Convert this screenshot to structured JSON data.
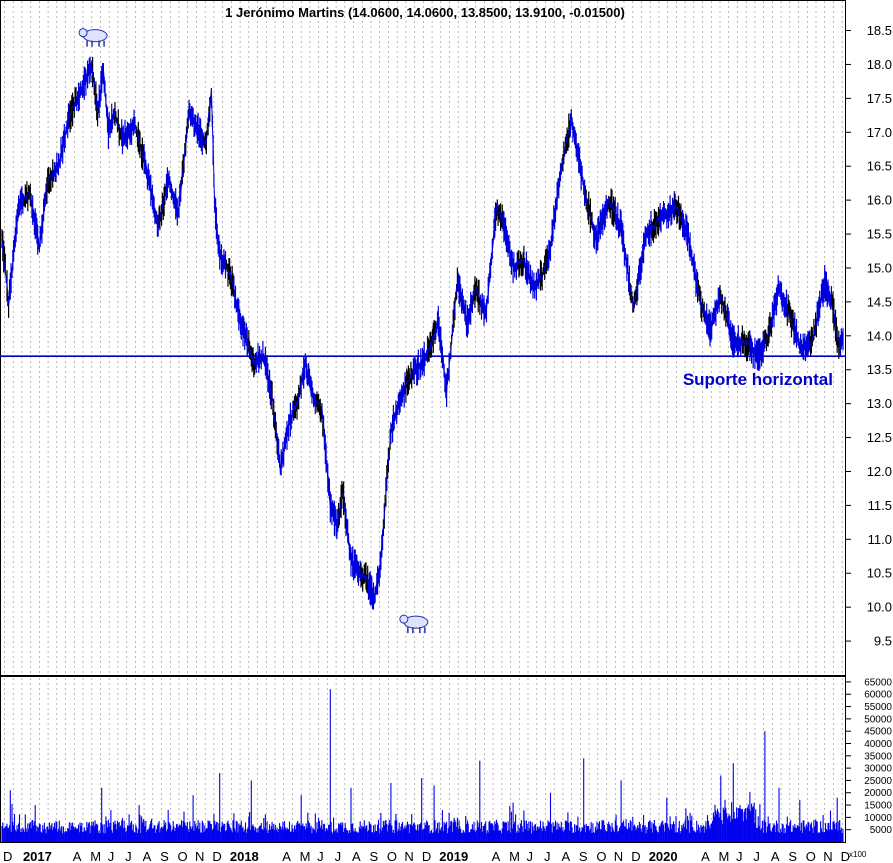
{
  "chart_data": [
    {
      "type": "line",
      "panel": "price",
      "title": "1 Jerónimo Martins (14.0600, 14.0600, 13.8500, 13.9100, -0.01500)",
      "xlabel": "",
      "ylabel": "",
      "ylim": [
        9.0,
        18.95
      ],
      "yticks": [
        "18.5",
        "18.0",
        "17.5",
        "17.0",
        "16.5",
        "16.0",
        "15.5",
        "15.0",
        "14.5",
        "14.0",
        "13.5",
        "13.0",
        "12.5",
        "12.0",
        "11.5",
        "11.0",
        "10.5",
        "10.0",
        "9.5"
      ],
      "grid": true,
      "colors": {
        "line": "#0000dd",
        "line_alt": "#000000",
        "support": "#0000cc",
        "annotation": "#0000cc",
        "grid": "#9a9a9a"
      },
      "x_labels": [
        "D",
        "2017",
        "A",
        "M",
        "J",
        "J",
        "A",
        "S",
        "O",
        "N",
        "D",
        "2018",
        "A",
        "M",
        "J",
        "J",
        "A",
        "S",
        "O",
        "N",
        "D",
        "2019",
        "A",
        "M",
        "J",
        "J",
        "A",
        "S",
        "O",
        "N",
        "D",
        "2020",
        "A",
        "M",
        "J",
        "J",
        "A",
        "S",
        "O",
        "N",
        "D"
      ],
      "x_label_day_index": [
        0,
        24,
        84,
        105,
        126,
        147,
        168,
        189,
        210,
        231,
        252,
        273,
        336,
        357,
        378,
        399,
        420,
        441,
        462,
        483,
        504,
        525,
        588,
        609,
        630,
        651,
        672,
        693,
        714,
        735,
        756,
        777,
        840,
        861,
        882,
        903,
        924,
        945,
        966,
        987,
        1008
      ],
      "day_range": [
        0,
        1012
      ],
      "series": [
        {
          "x": [
            0,
            8,
            20,
            33,
            45,
            55,
            68,
            80,
            95,
            108,
            115,
            122,
            128,
            135,
            145,
            160,
            175,
            188,
            200,
            212,
            225,
            238,
            245,
            252,
            256,
            262,
            275,
            285,
            295,
            303,
            315,
            325,
            335,
            345,
            355,
            365,
            375,
            385,
            395,
            403,
            410,
            420,
            430,
            440,
            448,
            455,
            462,
            468,
            480,
            492,
            505,
            515,
            525,
            535,
            548,
            560,
            570,
            582,
            595,
            605,
            615,
            628,
            640,
            650,
            660,
            672,
            685,
            700,
            715,
            730,
            745,
            760,
            775,
            790,
            800,
            812,
            825,
            840,
            852,
            865,
            880,
            895,
            910,
            922,
            935,
            948,
            962,
            975,
            990,
            1000,
            1006,
            1012
          ],
          "values": [
            15.4,
            14.5,
            15.9,
            16.1,
            15.3,
            16.3,
            16.5,
            17.2,
            17.6,
            18.0,
            17.3,
            17.9,
            17.0,
            17.3,
            16.9,
            17.1,
            16.4,
            15.6,
            16.3,
            15.8,
            17.3,
            17.0,
            16.8,
            17.6,
            15.9,
            15.2,
            14.9,
            14.3,
            13.9,
            13.6,
            13.7,
            13.1,
            12.0,
            12.7,
            13.0,
            13.6,
            13.1,
            12.9,
            11.5,
            11.2,
            11.7,
            10.7,
            10.5,
            10.4,
            10.1,
            10.6,
            11.7,
            12.6,
            13.1,
            13.4,
            13.6,
            13.8,
            14.2,
            13.2,
            14.8,
            14.2,
            14.7,
            14.3,
            15.9,
            15.6,
            15.0,
            15.1,
            14.7,
            14.9,
            15.3,
            16.4,
            17.2,
            16.2,
            15.4,
            16.0,
            15.6,
            14.4,
            15.5,
            15.7,
            15.8,
            15.9,
            15.5,
            14.5,
            14.1,
            14.6,
            13.9,
            13.9,
            13.7,
            14.0,
            14.7,
            14.3,
            13.8,
            13.9,
            14.8,
            14.4,
            13.9,
            13.91
          ]
        }
      ],
      "support_level": 13.7,
      "annotations": [
        {
          "text": "Suporte horizontal"
        }
      ],
      "markers": [
        {
          "type": "bear-icon",
          "day": 112,
          "value": 18.1
        },
        {
          "type": "bull-icon",
          "day": 498,
          "value": 10.0
        }
      ]
    },
    {
      "type": "bar",
      "panel": "volume",
      "ylim": [
        0,
        67000
      ],
      "yticks": [
        "65000",
        "60000",
        "55000",
        "50000",
        "45000",
        "40000",
        "35000",
        "30000",
        "25000",
        "20000",
        "15000",
        "10000",
        "5000"
      ],
      "scale_label": "x100",
      "colors": {
        "bar": "#0000ee"
      },
      "baseline": 3500,
      "spikes": [
        {
          "day": 10,
          "value": 21000
        },
        {
          "day": 40,
          "value": 15000
        },
        {
          "day": 120,
          "value": 22000
        },
        {
          "day": 165,
          "value": 15000
        },
        {
          "day": 230,
          "value": 19000
        },
        {
          "day": 262,
          "value": 28000
        },
        {
          "day": 300,
          "value": 25000
        },
        {
          "day": 360,
          "value": 19000
        },
        {
          "day": 395,
          "value": 62000
        },
        {
          "day": 420,
          "value": 22000
        },
        {
          "day": 468,
          "value": 24000
        },
        {
          "day": 505,
          "value": 26000
        },
        {
          "day": 520,
          "value": 23000
        },
        {
          "day": 575,
          "value": 33000
        },
        {
          "day": 615,
          "value": 16000
        },
        {
          "day": 660,
          "value": 20000
        },
        {
          "day": 700,
          "value": 34000
        },
        {
          "day": 745,
          "value": 25000
        },
        {
          "day": 800,
          "value": 18000
        },
        {
          "day": 865,
          "value": 27000
        },
        {
          "day": 880,
          "value": 32000
        },
        {
          "day": 905,
          "value": 16000
        },
        {
          "day": 918,
          "value": 45000
        },
        {
          "day": 935,
          "value": 22000
        },
        {
          "day": 960,
          "value": 17000
        },
        {
          "day": 1005,
          "value": 18000
        }
      ]
    }
  ]
}
